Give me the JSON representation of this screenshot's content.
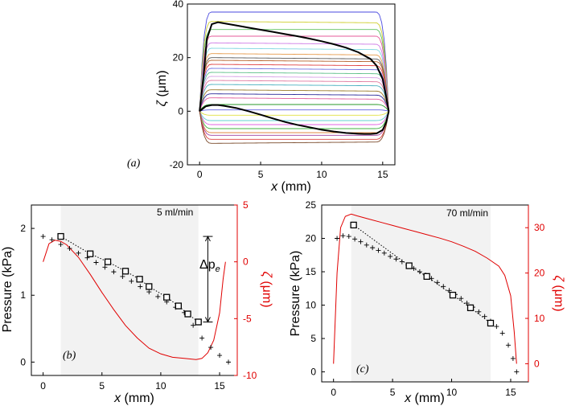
{
  "chart_data": [
    {
      "type": "line",
      "panel_label": "(a)",
      "xlabel_var": "x",
      "xlabel_unit": " (mm)",
      "ylabel_var": "ζ",
      "ylabel_unit": " (μm)",
      "xlim": [
        -1,
        16
      ],
      "ylim": [
        -20,
        40
      ],
      "xticks": [
        0,
        5,
        10,
        15
      ],
      "yticks": [
        -20,
        0,
        20,
        40
      ],
      "grid": false,
      "x_end": 15.5,
      "plateau_start": 1.0,
      "plateau_end": 14.4,
      "series": [
        {
          "name": "profile",
          "plateau_left": 37.0,
          "plateau_right": 37.0,
          "color": "#4a4adf"
        },
        {
          "name": "profile",
          "plateau_left": 33.5,
          "plateau_right": 33.0,
          "color": "#cfcf2f"
        },
        {
          "name": "profile",
          "plateau_left": 30.5,
          "plateau_right": 30.5,
          "color": "#5fc05f"
        },
        {
          "name": "profile",
          "plateau_left": 28.0,
          "plateau_right": 28.0,
          "color": "#e65b9a"
        },
        {
          "name": "profile",
          "plateau_left": 25.5,
          "plateau_right": 25.0,
          "color": "#cf7ae6"
        },
        {
          "name": "profile",
          "plateau_left": 23.5,
          "plateau_right": 23.0,
          "color": "#7fd6e0"
        },
        {
          "name": "profile",
          "plateau_left": 21.5,
          "plateau_right": 21.0,
          "color": "#e69a4a"
        },
        {
          "name": "profile",
          "plateau_left": 20.0,
          "plateau_right": 19.5,
          "color": "#5a5a5a"
        },
        {
          "name": "profile",
          "plateau_left": 19.0,
          "plateau_right": 18.5,
          "color": "#b5602a"
        },
        {
          "name": "profile",
          "plateau_left": 17.5,
          "plateau_right": 17.0,
          "color": "#e04040"
        },
        {
          "name": "profile",
          "plateau_left": 16.0,
          "plateau_right": 15.5,
          "color": "#7070e0"
        },
        {
          "name": "profile",
          "plateau_left": 14.5,
          "plateau_right": 14.0,
          "color": "#5fc08a"
        },
        {
          "name": "profile",
          "plateau_left": 13.0,
          "plateau_right": 12.5,
          "color": "#d6a0e6"
        },
        {
          "name": "profile",
          "plateau_left": 11.5,
          "plateau_right": 11.0,
          "color": "#e07aa0"
        },
        {
          "name": "profile",
          "plateau_left": 10.0,
          "plateau_right": 9.5,
          "color": "#4ab0c0"
        },
        {
          "name": "profile",
          "plateau_left": 8.0,
          "plateau_right": 7.5,
          "color": "#9a7a2a"
        },
        {
          "name": "profile",
          "plateau_left": 6.5,
          "plateau_right": 6.0,
          "color": "#2a2a9a"
        },
        {
          "name": "profile",
          "plateau_left": 5.0,
          "plateau_right": 4.5,
          "color": "#e05a9a"
        },
        {
          "name": "profile",
          "plateau_left": 2.5,
          "plateau_right": 2.5,
          "color": "#2a9a2a"
        },
        {
          "name": "profile",
          "plateau_left": 0.5,
          "plateau_right": 0.5,
          "color": "#6060e0"
        },
        {
          "name": "profile",
          "plateau_left": -1.5,
          "plateau_right": -1.5,
          "color": "#e0e040"
        },
        {
          "name": "profile",
          "plateau_left": -3.5,
          "plateau_right": -3.5,
          "color": "#60d0d0"
        },
        {
          "name": "profile",
          "plateau_left": -5.0,
          "plateau_right": -5.0,
          "color": "#e060e0"
        },
        {
          "name": "profile",
          "plateau_left": -6.5,
          "plateau_right": -6.5,
          "color": "#40b040"
        },
        {
          "name": "profile",
          "plateau_left": -8.0,
          "plateau_right": -8.0,
          "color": "#e08a40"
        },
        {
          "name": "profile",
          "plateau_left": -9.0,
          "plateau_right": -9.0,
          "color": "#a040a0"
        },
        {
          "name": "profile",
          "plateau_left": -10.5,
          "plateau_right": -10.5,
          "color": "#e04040"
        },
        {
          "name": "profile",
          "plateau_left": -12.0,
          "plateau_right": -11.5,
          "color": "#7a4a2a"
        }
      ],
      "highlight_series": [
        {
          "name": "70 ml/min profile",
          "x": [
            0,
            0.3,
            0.6,
            1.0,
            1.5,
            2,
            3,
            4,
            5,
            6,
            7,
            8,
            9,
            10,
            11,
            12,
            13,
            14,
            14.5,
            15,
            15.3,
            15.5
          ],
          "y": [
            0,
            12,
            27,
            32.5,
            33.2,
            32.8,
            32.0,
            31.2,
            30.4,
            29.6,
            28.8,
            28.0,
            27.1,
            26.1,
            25.0,
            23.7,
            22.0,
            19.5,
            17.0,
            12.0,
            5.0,
            0
          ],
          "color": "#000000"
        },
        {
          "name": "5 ml/min profile",
          "x": [
            0,
            0.5,
            1,
            1.5,
            2,
            3,
            4,
            5,
            6,
            7,
            8,
            9,
            10,
            11,
            12,
            13,
            13.5,
            14,
            14.5,
            15,
            15.3,
            15.5
          ],
          "y": [
            0,
            1.8,
            2.3,
            2.3,
            2.0,
            1.2,
            0.0,
            -1.3,
            -2.7,
            -4.0,
            -5.1,
            -6.0,
            -6.9,
            -7.6,
            -8.1,
            -8.4,
            -8.5,
            -8.5,
            -8.3,
            -7.0,
            -4.0,
            0
          ],
          "color": "#000000"
        }
      ]
    },
    {
      "type": "line",
      "panel_label": "(b)",
      "annotation": "5 ml/min",
      "dp_label_main": "Δp",
      "dp_label_sub": "e",
      "dp_range": [
        0.6,
        1.88
      ],
      "dp_x": 14.0,
      "xlabel_var": "x",
      "xlabel_unit": " (mm)",
      "ylabel": "Pressure (kPa)",
      "y2label_var": "ζ",
      "y2label_unit": " (μm)",
      "xlim": [
        -1,
        16.5
      ],
      "ylim": [
        -0.2,
        2.35
      ],
      "y2lim": [
        -10,
        5
      ],
      "xticks": [
        0,
        5,
        10,
        15
      ],
      "yticks": [
        0,
        1,
        2
      ],
      "y2ticks": [
        -10,
        -5,
        0,
        5
      ],
      "shade_x": [
        1.5,
        13.2
      ],
      "series": [
        {
          "name": "pressure crosses",
          "marker": "plus",
          "x": [
            0,
            0.75,
            1.5,
            2.25,
            3,
            3.75,
            4.5,
            5.25,
            6,
            6.75,
            7.5,
            8.25,
            9,
            9.75,
            10.5,
            11.25,
            12,
            12.75,
            13.5,
            14.25,
            15,
            15.75
          ],
          "y": [
            1.88,
            1.83,
            1.76,
            1.7,
            1.63,
            1.56,
            1.49,
            1.42,
            1.35,
            1.28,
            1.21,
            1.13,
            1.05,
            0.98,
            0.9,
            0.82,
            0.74,
            0.55,
            0.36,
            0.22,
            0.1,
            0.0
          ]
        },
        {
          "name": "pressure squares",
          "marker": "square",
          "x": [
            1.5,
            4,
            5.5,
            7,
            8.2,
            9,
            10.5,
            11.5,
            12.3,
            13.2
          ],
          "y": [
            1.88,
            1.62,
            1.5,
            1.36,
            1.24,
            1.13,
            0.97,
            0.84,
            0.72,
            0.6
          ]
        },
        {
          "name": "ζ profile",
          "axis": "right",
          "color": "#e00000",
          "x": [
            0,
            0.5,
            1,
            1.5,
            2,
            3,
            4,
            5,
            6,
            7,
            8,
            9,
            10,
            11,
            12,
            13,
            13.5,
            14,
            14.5,
            15,
            15.3,
            15.5
          ],
          "y": [
            0,
            1.6,
            1.9,
            1.8,
            1.5,
            0.4,
            -1.1,
            -2.7,
            -4.2,
            -5.6,
            -6.7,
            -7.6,
            -8.1,
            -8.4,
            -8.5,
            -8.6,
            -8.5,
            -8.0,
            -6.9,
            -4.5,
            -1.5,
            0
          ]
        }
      ]
    },
    {
      "type": "line",
      "panel_label": "(c)",
      "annotation": "70 ml/min",
      "xlabel_var": "x",
      "xlabel_unit": " (mm)",
      "ylabel": "Pressure (kPa)",
      "y2label_var": "ζ",
      "y2label_unit": " (μm)",
      "xlim": [
        -1,
        16.5
      ],
      "ylim": [
        -1.5,
        25
      ],
      "y2lim": [
        -4,
        35
      ],
      "xticks": [
        0,
        5,
        10,
        15
      ],
      "yticks": [
        0,
        5,
        10,
        15,
        20,
        25
      ],
      "y2ticks": [
        0,
        10,
        20,
        30
      ],
      "shade_x": [
        1.5,
        13.3
      ],
      "series": [
        {
          "name": "pressure crosses",
          "marker": "plus",
          "x": [
            0.3,
            0.8,
            1.3,
            1.8,
            2.3,
            2.8,
            3.3,
            3.8,
            4.3,
            4.8,
            5.3,
            5.8,
            6.3,
            6.8,
            7.3,
            7.8,
            8.3,
            8.8,
            9.3,
            9.8,
            10.3,
            10.8,
            11.3,
            11.8,
            12.3,
            12.8,
            13.3,
            13.8,
            14.3,
            14.8,
            15.2,
            15.5
          ],
          "y": [
            20.0,
            20.4,
            20.3,
            19.9,
            19.5,
            19.0,
            18.6,
            18.2,
            17.8,
            17.3,
            16.9,
            16.5,
            16.0,
            15.5,
            15.0,
            14.5,
            14.0,
            13.4,
            12.8,
            12.2,
            11.6,
            11.0,
            10.3,
            9.7,
            9.0,
            8.3,
            7.6,
            6.8,
            5.8,
            4.0,
            2.0,
            0.0
          ]
        },
        {
          "name": "pressure squares",
          "marker": "square",
          "x": [
            1.7,
            6.4,
            7.9,
            10.1,
            11.6,
            13.3
          ],
          "y": [
            22.0,
            15.9,
            14.3,
            11.5,
            9.6,
            7.3
          ]
        },
        {
          "name": "ζ profile",
          "axis": "right",
          "color": "#e00000",
          "x": [
            0,
            0.3,
            0.6,
            1,
            1.5,
            2,
            3,
            4,
            5,
            6,
            7,
            8,
            9,
            10,
            11,
            12,
            13,
            14,
            14.5,
            15,
            15.3,
            15.5
          ],
          "y": [
            0,
            20,
            30,
            32.5,
            33.0,
            32.6,
            31.9,
            31.2,
            30.5,
            29.8,
            29.1,
            28.4,
            27.7,
            26.9,
            25.9,
            24.8,
            23.3,
            21.5,
            19.5,
            15.0,
            7.0,
            0
          ]
        }
      ]
    }
  ]
}
